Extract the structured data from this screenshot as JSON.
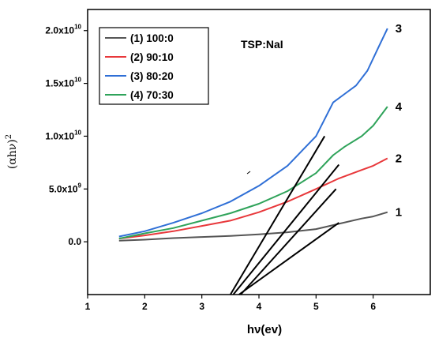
{
  "chart_data": {
    "type": "line",
    "title": "",
    "annotation": "TSP:NaI",
    "xlabel": "hν(ev)",
    "ylabel": "(αhν)",
    "ylabel_superscript": "2",
    "xlim": [
      1,
      7
    ],
    "ylim": [
      -5000000000.0,
      22000000000.0
    ],
    "x_ticks": [
      1,
      2,
      3,
      4,
      5,
      6
    ],
    "x_tick_labels": [
      "1",
      "2",
      "3",
      "4",
      "5",
      "6"
    ],
    "y_ticks": [
      0,
      5000000000.0,
      10000000000.0,
      15000000000.0,
      20000000000.0
    ],
    "y_tick_labels": [
      {
        "mantissa": "0.0",
        "exp": ""
      },
      {
        "mantissa": "5.0x10",
        "exp": "9"
      },
      {
        "mantissa": "1.0x10",
        "exp": "10"
      },
      {
        "mantissa": "1.5x10",
        "exp": "10"
      },
      {
        "mantissa": "2.0x10",
        "exp": "10"
      }
    ],
    "grid": false,
    "legend_position": "top-left",
    "series": [
      {
        "name": "(1) 100:0",
        "end_label": "1",
        "color": "#555555",
        "points": [
          [
            1.55,
            100000000.0
          ],
          [
            2.0,
            200000000.0
          ],
          [
            2.5,
            350000000.0
          ],
          [
            3.0,
            450000000.0
          ],
          [
            3.5,
            550000000.0
          ],
          [
            4.0,
            700000000.0
          ],
          [
            4.5,
            900000000.0
          ],
          [
            5.0,
            1200000000.0
          ],
          [
            5.4,
            1700000000.0
          ],
          [
            5.8,
            2200000000.0
          ],
          [
            6.0,
            2400000000.0
          ],
          [
            6.25,
            2800000000.0
          ]
        ]
      },
      {
        "name": "(2) 90:10",
        "end_label": "2",
        "color": "#e8383b",
        "points": [
          [
            1.55,
            300000000.0
          ],
          [
            2.0,
            600000000.0
          ],
          [
            2.5,
            1000000000.0
          ],
          [
            3.0,
            1500000000.0
          ],
          [
            3.5,
            2000000000.0
          ],
          [
            4.0,
            2800000000.0
          ],
          [
            4.5,
            3800000000.0
          ],
          [
            5.0,
            5000000000.0
          ],
          [
            5.4,
            6000000000.0
          ],
          [
            5.8,
            6800000000.0
          ],
          [
            6.0,
            7200000000.0
          ],
          [
            6.25,
            7900000000.0
          ]
        ]
      },
      {
        "name": "(3) 80:20",
        "end_label": "3",
        "color": "#2f6fd6",
        "points": [
          [
            1.55,
            500000000.0
          ],
          [
            2.0,
            1000000000.0
          ],
          [
            2.5,
            1800000000.0
          ],
          [
            3.0,
            2700000000.0
          ],
          [
            3.5,
            3800000000.0
          ],
          [
            4.0,
            5300000000.0
          ],
          [
            4.5,
            7200000000.0
          ],
          [
            5.0,
            10000000000.0
          ],
          [
            5.3,
            13200000000.0
          ],
          [
            5.5,
            14000000000.0
          ],
          [
            5.7,
            14800000000.0
          ],
          [
            5.9,
            16200000000.0
          ],
          [
            6.1,
            18500000000.0
          ],
          [
            6.25,
            20200000000.0
          ]
        ]
      },
      {
        "name": "(4) 70:30",
        "end_label": "4",
        "color": "#2fa35a",
        "points": [
          [
            1.55,
            300000000.0
          ],
          [
            2.0,
            800000000.0
          ],
          [
            2.5,
            1300000000.0
          ],
          [
            3.0,
            2000000000.0
          ],
          [
            3.5,
            2700000000.0
          ],
          [
            4.0,
            3600000000.0
          ],
          [
            4.5,
            4800000000.0
          ],
          [
            5.0,
            6500000000.0
          ],
          [
            5.3,
            8200000000.0
          ],
          [
            5.5,
            9000000000.0
          ],
          [
            5.8,
            10000000000.0
          ],
          [
            6.0,
            11000000000.0
          ],
          [
            6.25,
            12800000000.0
          ]
        ]
      }
    ],
    "tangent_lines": [
      {
        "color": "#000000",
        "from": [
          3.5,
          -5000000000.0
        ],
        "to": [
          5.15,
          10000000000.0
        ]
      },
      {
        "color": "#000000",
        "from": [
          3.55,
          -5000000000.0
        ],
        "to": [
          5.4,
          7300000000.0
        ]
      },
      {
        "color": "#000000",
        "from": [
          3.68,
          -5000000000.0
        ],
        "to": [
          5.35,
          5000000000.0
        ]
      },
      {
        "color": "#000000",
        "from": [
          3.65,
          -5000000000.0
        ],
        "to": [
          5.4,
          1800000000.0
        ]
      }
    ],
    "colors": {
      "axis": "#000000",
      "legend_border": "#000000"
    }
  }
}
